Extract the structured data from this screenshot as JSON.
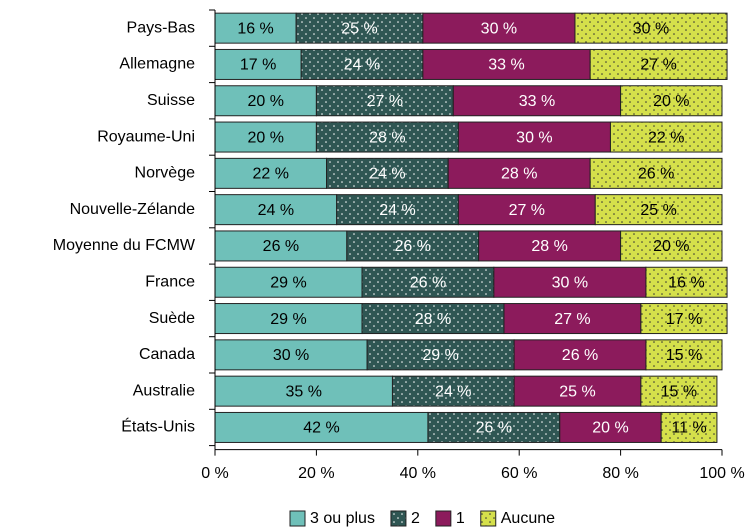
{
  "chart_data": {
    "type": "stacked-bar-horizontal",
    "categories": [
      "Pays-Bas",
      "Allemagne",
      "Suisse",
      "Royaume-Uni",
      "Norvège",
      "Nouvelle-Zélande",
      "Moyenne du FCMW",
      "France",
      "Suède",
      "Canada",
      "Australie",
      "États-Unis"
    ],
    "series": [
      {
        "name": "3 ou plus",
        "color": "#6fc0b9",
        "pattern": false,
        "values": [
          16,
          17,
          20,
          20,
          22,
          24,
          26,
          29,
          29,
          30,
          35,
          42
        ],
        "value_labels": [
          "16 %",
          "17 %",
          "20 %",
          "20 %",
          "22 %",
          "24 %",
          "26 %",
          "29 %",
          "29 %",
          "30 %",
          "35 %",
          "42 %"
        ]
      },
      {
        "name": "2",
        "color": "#2f5653",
        "pattern": true,
        "values": [
          25,
          24,
          27,
          28,
          24,
          24,
          26,
          26,
          28,
          29,
          24,
          26
        ],
        "value_labels": [
          "25 %",
          "24 %",
          "27 %",
          "28 %",
          "24 %",
          "24 %",
          "26 %",
          "26 %",
          "28 %",
          "29 %",
          "24 %",
          "26 %"
        ]
      },
      {
        "name": "1",
        "color": "#8c1b5c",
        "pattern": false,
        "values": [
          30,
          33,
          33,
          30,
          28,
          27,
          28,
          30,
          27,
          26,
          25,
          20
        ],
        "value_labels": [
          "30 %",
          "33 %",
          "33 %",
          "30 %",
          "28 %",
          "27 %",
          "28 %",
          "30 %",
          "27 %",
          "26 %",
          "25 %",
          "20 %"
        ]
      },
      {
        "name": "Aucune",
        "color": "#d5e04b",
        "pattern": true,
        "values": [
          30,
          27,
          20,
          22,
          26,
          25,
          20,
          16,
          17,
          15,
          15,
          11
        ],
        "value_labels": [
          "30 %",
          "27 %",
          "20 %",
          "22 %",
          "26 %",
          "25 %",
          "20 %",
          "16 %",
          "17 %",
          "15 %",
          "15 %",
          "11 %"
        ]
      }
    ],
    "xlim": [
      0,
      100
    ],
    "xticks": [
      {
        "value": 0,
        "label": "0 %"
      },
      {
        "value": 20,
        "label": "20 %"
      },
      {
        "value": 40,
        "label": "40 %"
      },
      {
        "value": 60,
        "label": "60 %"
      },
      {
        "value": 80,
        "label": "80 %"
      },
      {
        "value": 100,
        "label": "100 %"
      }
    ],
    "legend": "bottom"
  }
}
